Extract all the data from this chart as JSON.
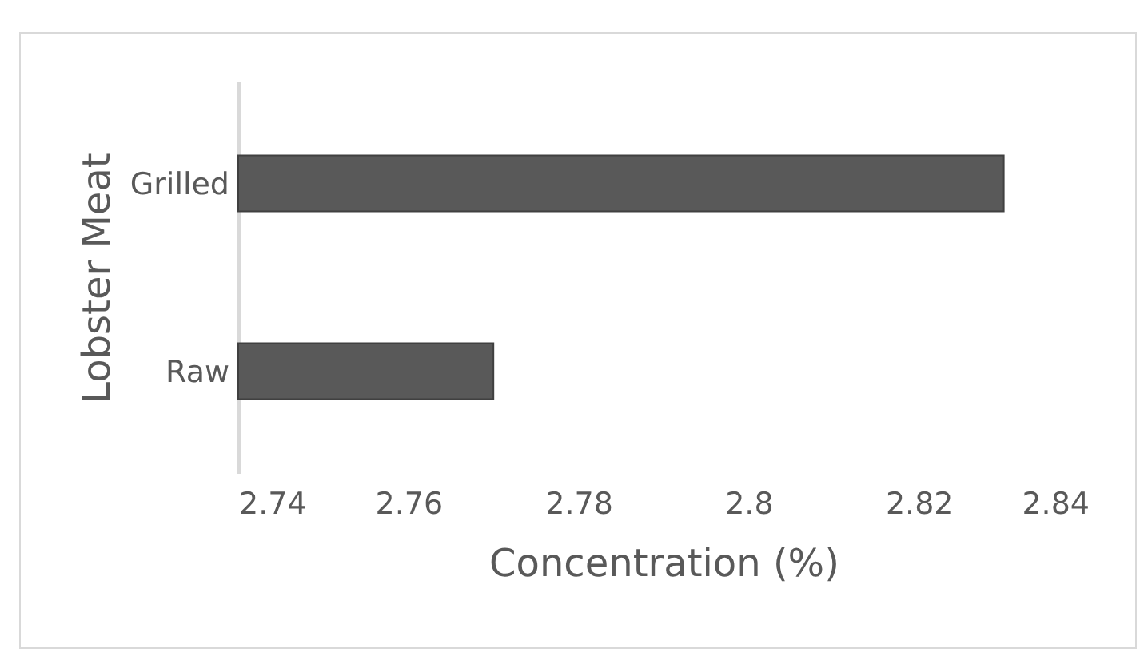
{
  "chart_data": {
    "type": "bar",
    "orientation": "horizontal",
    "categories": [
      "Grilled",
      "Raw"
    ],
    "values": [
      2.83,
      2.77
    ],
    "color": "#595959",
    "xlabel": "Concentration (%)",
    "ylabel": "Lobster Meat",
    "xlim": [
      2.74,
      2.84
    ],
    "xticks": [
      2.74,
      2.76,
      2.78,
      2.8,
      2.82,
      2.84
    ],
    "grid": false
  }
}
